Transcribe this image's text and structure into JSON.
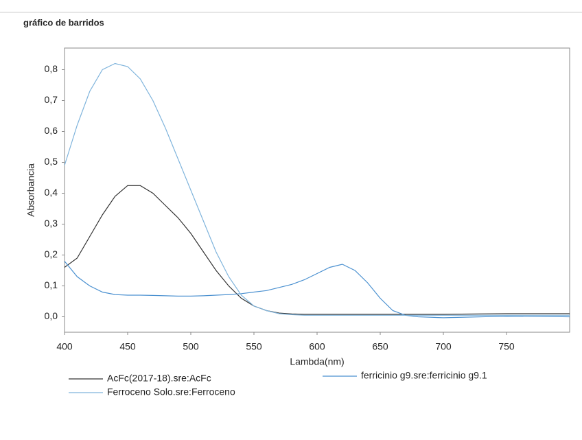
{
  "chart_data": {
    "type": "line",
    "title": "gráfico de barridos",
    "x_label": "Lambda(nm)",
    "y_label": "Absorbancia",
    "x": [
      400,
      410,
      420,
      430,
      440,
      450,
      460,
      470,
      480,
      490,
      500,
      510,
      520,
      530,
      540,
      550,
      560,
      570,
      580,
      590,
      600,
      610,
      620,
      630,
      640,
      650,
      660,
      670,
      680,
      700,
      750,
      800
    ],
    "series": [
      {
        "name": "AcFc(2017-18).sre:AcFc",
        "color": "#333333",
        "values": [
          0.16,
          0.19,
          0.26,
          0.33,
          0.39,
          0.425,
          0.425,
          0.4,
          0.36,
          0.32,
          0.27,
          0.21,
          0.15,
          0.1,
          0.06,
          0.035,
          0.02,
          0.012,
          0.009,
          0.008,
          0.008,
          0.008,
          0.008,
          0.008,
          0.008,
          0.008,
          0.008,
          0.008,
          0.008,
          0.008,
          0.01,
          0.01
        ]
      },
      {
        "name": "ferricinio g9.sre:ferricinio g9.1",
        "color": "#4a90d0",
        "values": [
          0.18,
          0.13,
          0.1,
          0.08,
          0.072,
          0.07,
          0.07,
          0.069,
          0.068,
          0.067,
          0.067,
          0.068,
          0.07,
          0.072,
          0.075,
          0.08,
          0.085,
          0.095,
          0.105,
          0.12,
          0.14,
          0.16,
          0.17,
          0.15,
          0.11,
          0.06,
          0.02,
          0.005,
          0,
          -0.003,
          0.002,
          0
        ]
      },
      {
        "name": "Ferroceno Solo.sre:Ferroceno",
        "color": "#7fb4dc",
        "values": [
          0.49,
          0.62,
          0.73,
          0.8,
          0.82,
          0.81,
          0.77,
          0.7,
          0.61,
          0.51,
          0.41,
          0.31,
          0.21,
          0.13,
          0.07,
          0.035,
          0.02,
          0.01,
          0.007,
          0.005,
          0.005,
          0.005,
          0.005,
          0.005,
          0.005,
          0.005,
          0.005,
          0.005,
          0.005,
          0.005,
          0.005,
          0.005
        ]
      }
    ],
    "xlim": [
      400,
      800
    ],
    "xticks": [
      400,
      450,
      500,
      550,
      600,
      650,
      700,
      750
    ],
    "ylim": [
      -0.05,
      0.87
    ],
    "yticks": [
      {
        "value": 0,
        "label": "0,0"
      },
      {
        "value": 0.1,
        "label": "0,1"
      },
      {
        "value": 0.2,
        "label": "0,2"
      },
      {
        "value": 0.3,
        "label": "0,3"
      },
      {
        "value": 0.4,
        "label": "0,4"
      },
      {
        "value": 0.5,
        "label": "0,5"
      },
      {
        "value": 0.6,
        "label": "0,6"
      },
      {
        "value": 0.7,
        "label": "0,7"
      },
      {
        "value": 0.8,
        "label": "0,8"
      }
    ]
  }
}
